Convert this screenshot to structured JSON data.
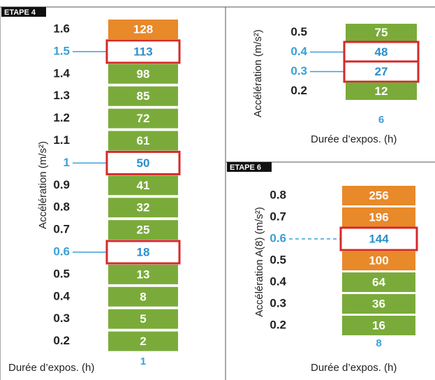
{
  "panels": [
    {
      "step": "ETAPE 4",
      "y_label": "Accélération (m/s²)",
      "x_label": "Durée d’expos. (h)",
      "x_value": "1",
      "rows": [
        {
          "label": "1.6",
          "value": 128,
          "color": "#e8892a",
          "highlight": false
        },
        {
          "label": "1.5",
          "value": 113,
          "color": "#7aab3a",
          "highlight": true
        },
        {
          "label": "1.4",
          "value": 98,
          "color": "#7aab3a",
          "highlight": false
        },
        {
          "label": "1.3",
          "value": 85,
          "color": "#7aab3a",
          "highlight": false
        },
        {
          "label": "1.2",
          "value": 72,
          "color": "#7aab3a",
          "highlight": false
        },
        {
          "label": "1.1",
          "value": 61,
          "color": "#7aab3a",
          "highlight": false
        },
        {
          "label": "1",
          "value": 50,
          "color": "#7aab3a",
          "highlight": true
        },
        {
          "label": "0.9",
          "value": 41,
          "color": "#7aab3a",
          "highlight": false
        },
        {
          "label": "0.8",
          "value": 32,
          "color": "#7aab3a",
          "highlight": false
        },
        {
          "label": "0.7",
          "value": 25,
          "color": "#7aab3a",
          "highlight": false
        },
        {
          "label": "0.6",
          "value": 18,
          "color": "#7aab3a",
          "highlight": true
        },
        {
          "label": "0.5",
          "value": 13,
          "color": "#7aab3a",
          "highlight": false
        },
        {
          "label": "0.4",
          "value": 8,
          "color": "#7aab3a",
          "highlight": false
        },
        {
          "label": "0.3",
          "value": 5,
          "color": "#7aab3a",
          "highlight": false
        },
        {
          "label": "0.2",
          "value": 2,
          "color": "#7aab3a",
          "highlight": false
        }
      ]
    },
    {
      "y_label": "Accélération (m/s²)",
      "x_label": "Durée d’expos. (h)",
      "x_value": "6",
      "rows": [
        {
          "label": "0.5",
          "value": 75,
          "color": "#7aab3a",
          "highlight": false
        },
        {
          "label": "0.4",
          "value": 48,
          "color": "#7aab3a",
          "highlight": true
        },
        {
          "label": "0.3",
          "value": 27,
          "color": "#7aab3a",
          "highlight": true
        },
        {
          "label": "0.2",
          "value": 12,
          "color": "#7aab3a",
          "highlight": false
        }
      ]
    },
    {
      "step": "ETAPE 6",
      "y_label": "Accélération A(8) (m/s²)",
      "x_label": "Durée d’expos. (h)",
      "x_value": "8",
      "rows": [
        {
          "label": "0.8",
          "value": 256,
          "color": "#e8892a",
          "highlight": false
        },
        {
          "label": "0.7",
          "value": 196,
          "color": "#e8892a",
          "highlight": false
        },
        {
          "label": "0.6",
          "value": 144,
          "color": "#e8892a",
          "highlight": true
        },
        {
          "label": "0.5",
          "value": 100,
          "color": "#e8892a",
          "highlight": false
        },
        {
          "label": "0.4",
          "value": 64,
          "color": "#7aab3a",
          "highlight": false
        },
        {
          "label": "0.3",
          "value": 36,
          "color": "#7aab3a",
          "highlight": false
        },
        {
          "label": "0.2",
          "value": 16,
          "color": "#7aab3a",
          "highlight": false
        }
      ]
    }
  ]
}
